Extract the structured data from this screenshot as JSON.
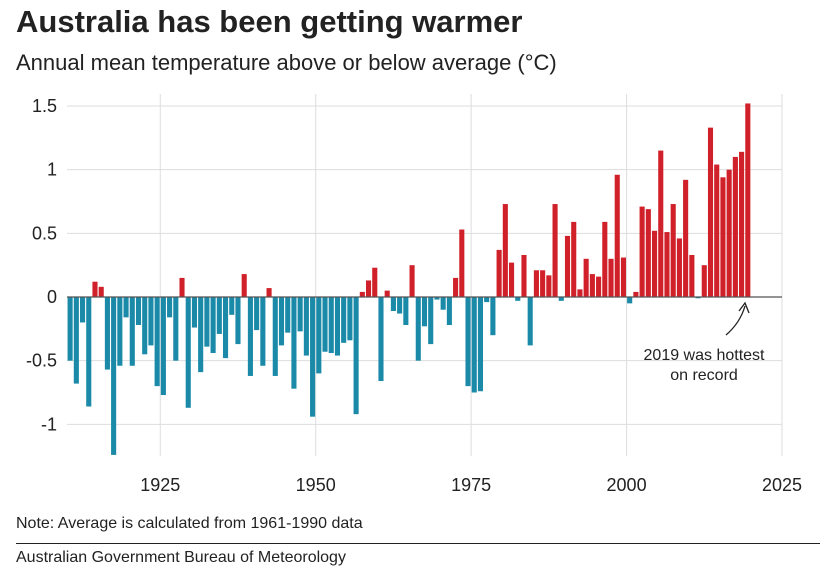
{
  "header": {
    "title": "Australia has been getting warmer",
    "subtitle": "Annual mean temperature above or below average (°C)"
  },
  "footer": {
    "note": "Note: Average is calculated from 1961-1990 data",
    "source": "Australian Government Bureau of Meteorology"
  },
  "colors": {
    "positive": "#d0202a",
    "negative": "#1a8aa8",
    "grid": "#dddddd",
    "zero_line": "#555555"
  },
  "chart_data": {
    "type": "bar",
    "title": "Australia has been getting warmer",
    "subtitle": "Annual mean temperature above or below average (°C)",
    "xlabel": "",
    "ylabel": "",
    "xlim": [
      1910,
      2025
    ],
    "ylim": [
      -1.25,
      1.5
    ],
    "xticks": [
      1925,
      1950,
      1975,
      2000,
      2025
    ],
    "xtick_labels": [
      "1925",
      "1950",
      "1975",
      "2000",
      "2025"
    ],
    "yticks": [
      1.5,
      1,
      0.5,
      0,
      -0.5,
      -1
    ],
    "ytick_labels": [
      "1.5",
      "1",
      "0.5",
      "0",
      "-0.5",
      "-1"
    ],
    "grid": true,
    "x": [
      1910,
      1911,
      1912,
      1913,
      1914,
      1915,
      1916,
      1917,
      1918,
      1919,
      1920,
      1921,
      1922,
      1923,
      1924,
      1925,
      1926,
      1927,
      1928,
      1929,
      1930,
      1931,
      1932,
      1933,
      1934,
      1935,
      1936,
      1937,
      1938,
      1939,
      1940,
      1941,
      1942,
      1943,
      1944,
      1945,
      1946,
      1947,
      1948,
      1949,
      1950,
      1951,
      1952,
      1953,
      1954,
      1955,
      1956,
      1957,
      1958,
      1959,
      1960,
      1961,
      1962,
      1963,
      1964,
      1965,
      1966,
      1967,
      1968,
      1969,
      1970,
      1971,
      1972,
      1973,
      1974,
      1975,
      1976,
      1977,
      1978,
      1979,
      1980,
      1981,
      1982,
      1983,
      1984,
      1985,
      1986,
      1987,
      1988,
      1989,
      1990,
      1991,
      1992,
      1993,
      1994,
      1995,
      1996,
      1997,
      1998,
      1999,
      2000,
      2001,
      2002,
      2003,
      2004,
      2005,
      2006,
      2007,
      2008,
      2009,
      2010,
      2011,
      2012,
      2013,
      2014,
      2015,
      2016,
      2017,
      2018,
      2019
    ],
    "values": [
      -0.5,
      -0.68,
      -0.2,
      -0.86,
      0.12,
      0.08,
      -0.57,
      -1.24,
      -0.54,
      -0.16,
      -0.54,
      -0.22,
      -0.45,
      -0.38,
      -0.7,
      -0.77,
      -0.16,
      -0.5,
      0.15,
      -0.87,
      -0.24,
      -0.59,
      -0.39,
      -0.44,
      -0.29,
      -0.48,
      -0.14,
      -0.37,
      0.18,
      -0.62,
      -0.26,
      -0.54,
      0.07,
      -0.62,
      -0.38,
      -0.28,
      -0.72,
      -0.27,
      -0.46,
      -0.94,
      -0.6,
      -0.43,
      -0.44,
      -0.46,
      -0.36,
      -0.34,
      -0.92,
      0.04,
      0.13,
      0.23,
      -0.66,
      0.05,
      -0.11,
      -0.13,
      -0.22,
      0.25,
      -0.5,
      -0.23,
      -0.37,
      -0.02,
      -0.1,
      -0.22,
      0.15,
      0.53,
      -0.7,
      -0.75,
      -0.74,
      -0.04,
      -0.3,
      0.37,
      0.73,
      0.27,
      -0.03,
      0.33,
      -0.38,
      0.21,
      0.21,
      0.17,
      0.73,
      -0.03,
      0.48,
      0.59,
      0.06,
      0.3,
      0.18,
      0.16,
      0.59,
      0.3,
      0.96,
      0.31,
      -0.05,
      0.04,
      0.71,
      0.69,
      0.52,
      1.15,
      0.51,
      0.73,
      0.46,
      0.92,
      0.33,
      -0.01,
      0.25,
      1.33,
      1.04,
      0.94,
      1.0,
      1.1,
      1.14,
      1.52
    ],
    "annotations": [
      {
        "text_lines": [
          "2019 was hottest",
          "on record"
        ],
        "x": 2019,
        "y": 1.52
      }
    ]
  }
}
